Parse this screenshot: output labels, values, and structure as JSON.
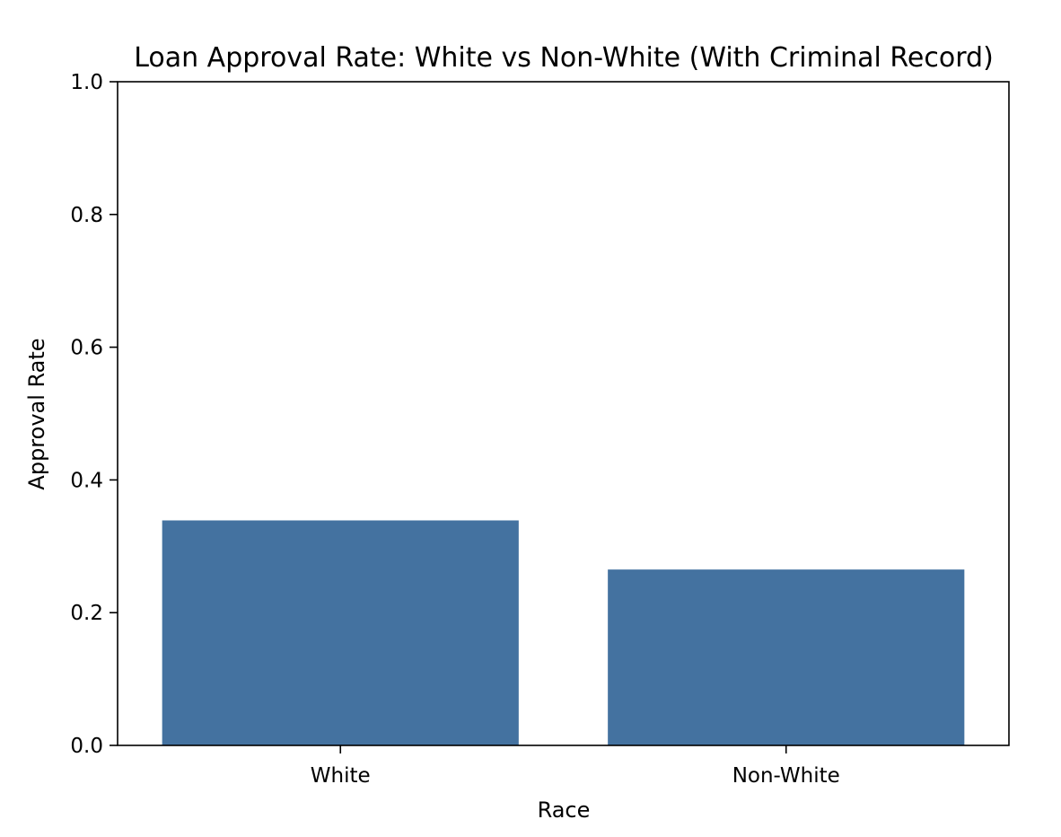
{
  "chart_data": {
    "type": "bar",
    "title": "Loan Approval Rate: White vs Non-White (With Criminal Record)",
    "xlabel": "Race",
    "ylabel": "Approval Rate",
    "categories": [
      "White",
      "Non-White"
    ],
    "values": [
      0.339,
      0.265
    ],
    "ylim": [
      0,
      1.0
    ],
    "yticks": [
      "0.0",
      "0.2",
      "0.4",
      "0.6",
      "0.8",
      "1.0"
    ],
    "grid": false,
    "legend": "none",
    "bar_color": "#4472a0"
  }
}
